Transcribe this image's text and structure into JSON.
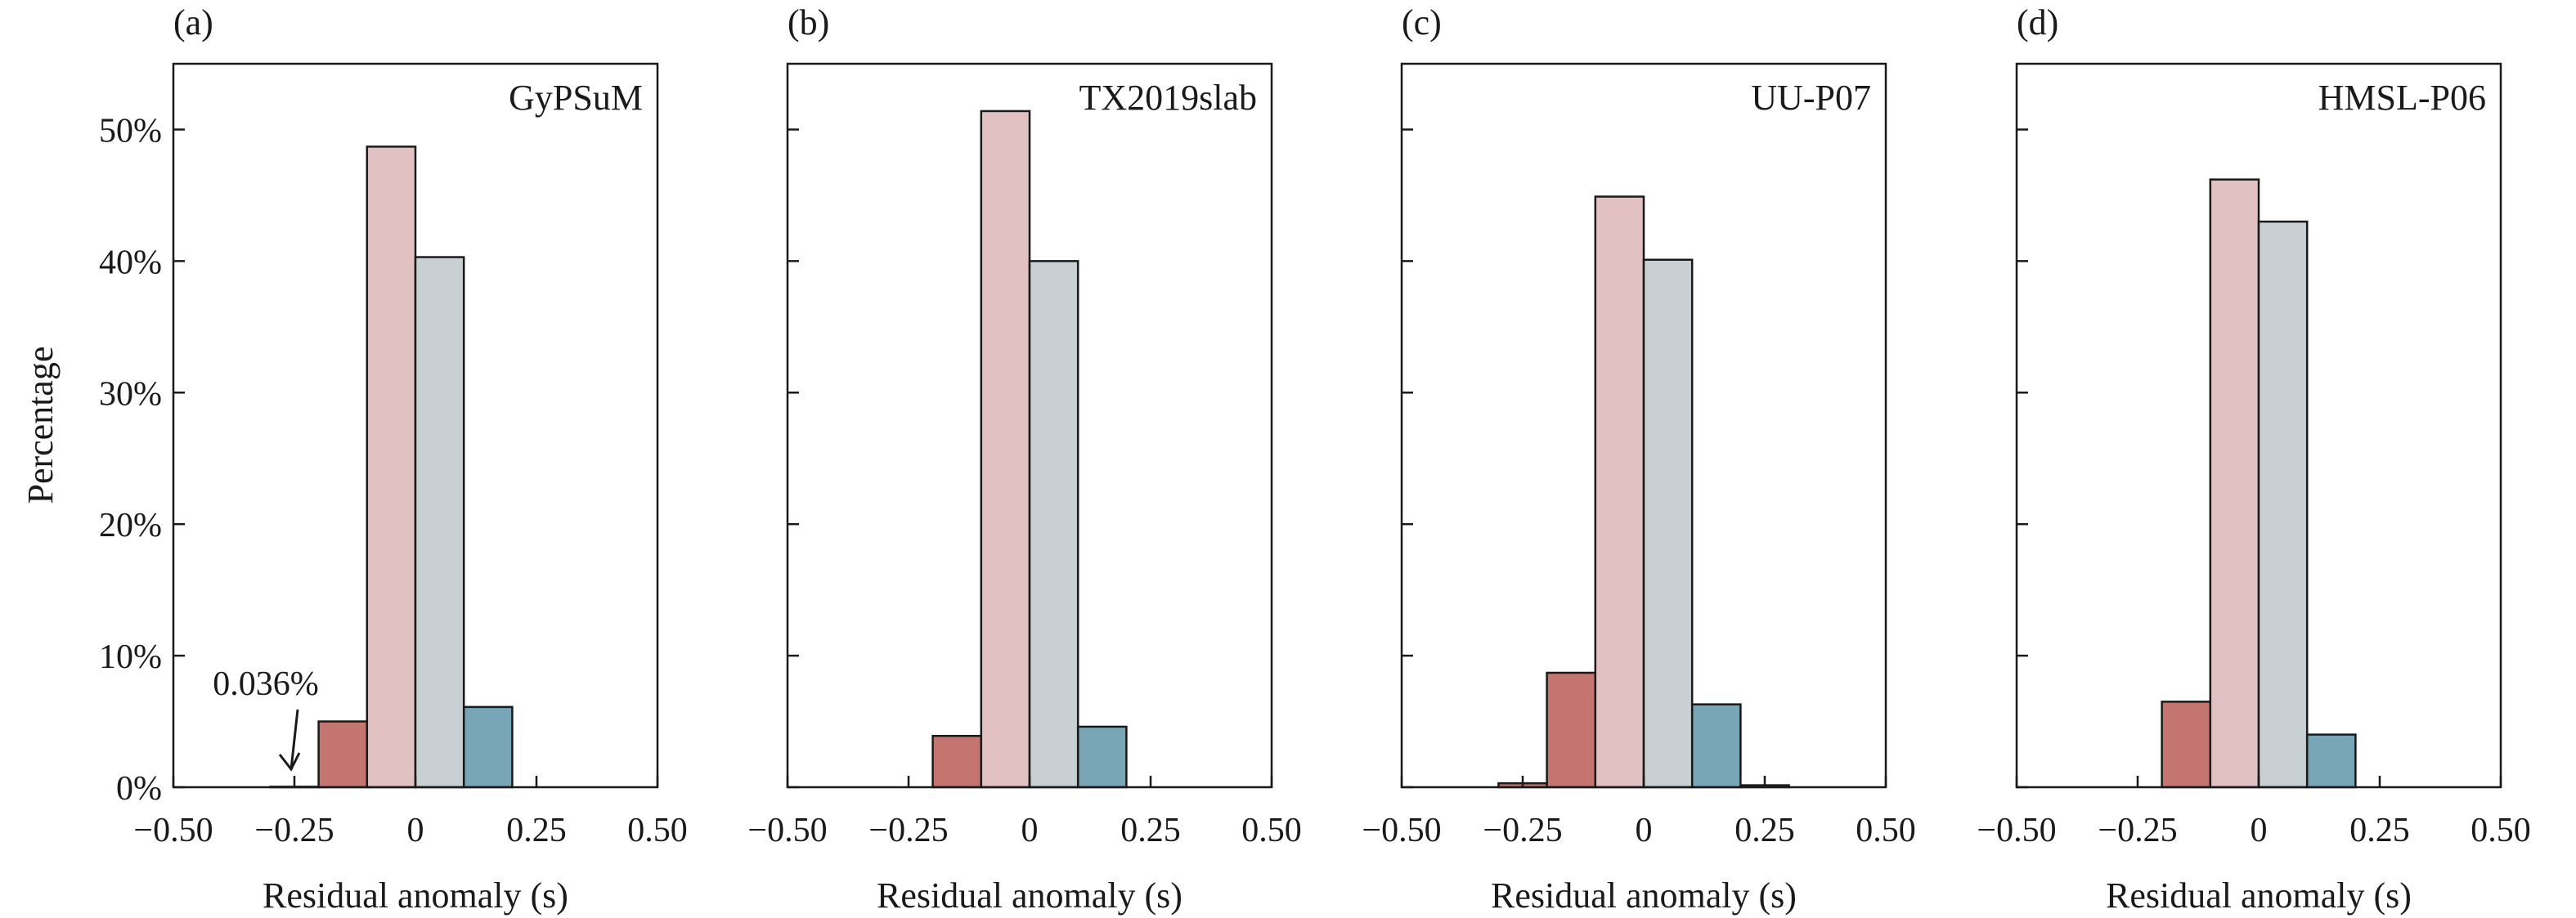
{
  "figure": {
    "ylabel": "Percentage",
    "xlabel": "Residual anomaly (s)",
    "colors": {
      "bin1": "#c5756f",
      "bin2": "#e1c1c1",
      "bin3": "#c8d0d4",
      "bin4": "#78a6b6",
      "ink": "#1a1a1a"
    }
  },
  "chart_data": [
    {
      "type": "bar",
      "panel": "(a)",
      "title": "GyPSuM",
      "xlabel": "Residual anomaly (s)",
      "ylabel": "Percentage",
      "xlim": [
        -0.5,
        0.5
      ],
      "ylim": [
        0,
        55
      ],
      "xticks": [
        "−0.50",
        "−0.25",
        "0",
        "0.25",
        "0.50"
      ],
      "yticks": [
        "0%",
        "10%",
        "20%",
        "30%",
        "40%",
        "50%"
      ],
      "bin_width": 0.1,
      "bins": [
        {
          "x": -0.25,
          "value": 0.036,
          "color": "bin1"
        },
        {
          "x": -0.15,
          "value": 5.0,
          "color": "bin1"
        },
        {
          "x": -0.05,
          "value": 48.7,
          "color": "bin2"
        },
        {
          "x": 0.05,
          "value": 40.3,
          "color": "bin3"
        },
        {
          "x": 0.15,
          "value": 6.1,
          "color": "bin4"
        }
      ],
      "annotation": {
        "text": "0.036%",
        "x": -0.25,
        "value": 0.036
      }
    },
    {
      "type": "bar",
      "panel": "(b)",
      "title": "TX2019slab",
      "xlabel": "Residual anomaly (s)",
      "ylabel": "",
      "xlim": [
        -0.5,
        0.5
      ],
      "ylim": [
        0,
        55
      ],
      "xticks": [
        "−0.50",
        "−0.25",
        "0",
        "0.25",
        "0.50"
      ],
      "yticks": [],
      "bin_width": 0.1,
      "bins": [
        {
          "x": -0.15,
          "value": 3.9,
          "color": "bin1"
        },
        {
          "x": -0.05,
          "value": 51.4,
          "color": "bin2"
        },
        {
          "x": 0.05,
          "value": 40.0,
          "color": "bin3"
        },
        {
          "x": 0.15,
          "value": 4.6,
          "color": "bin4"
        }
      ]
    },
    {
      "type": "bar",
      "panel": "(c)",
      "title": "UU-P07",
      "xlabel": "Residual anomaly (s)",
      "ylabel": "",
      "xlim": [
        -0.5,
        0.5
      ],
      "ylim": [
        0,
        55
      ],
      "xticks": [
        "−0.50",
        "−0.25",
        "0",
        "0.25",
        "0.50"
      ],
      "yticks": [],
      "bin_width": 0.1,
      "bins": [
        {
          "x": -0.25,
          "value": 0.3,
          "color": "bin1"
        },
        {
          "x": -0.15,
          "value": 8.7,
          "color": "bin1"
        },
        {
          "x": -0.05,
          "value": 44.9,
          "color": "bin2"
        },
        {
          "x": 0.05,
          "value": 40.1,
          "color": "bin3"
        },
        {
          "x": 0.15,
          "value": 6.3,
          "color": "bin4"
        },
        {
          "x": 0.25,
          "value": 0.15,
          "color": "bin4"
        }
      ]
    },
    {
      "type": "bar",
      "panel": "(d)",
      "title": "HMSL-P06",
      "xlabel": "Residual anomaly (s)",
      "ylabel": "",
      "xlim": [
        -0.5,
        0.5
      ],
      "ylim": [
        0,
        55
      ],
      "xticks": [
        "−0.50",
        "−0.25",
        "0",
        "0.25",
        "0.50"
      ],
      "yticks": [],
      "bin_width": 0.1,
      "bins": [
        {
          "x": -0.15,
          "value": 6.5,
          "color": "bin1"
        },
        {
          "x": -0.05,
          "value": 46.2,
          "color": "bin2"
        },
        {
          "x": 0.05,
          "value": 43.0,
          "color": "bin3"
        },
        {
          "x": 0.15,
          "value": 4.0,
          "color": "bin4"
        }
      ]
    }
  ]
}
